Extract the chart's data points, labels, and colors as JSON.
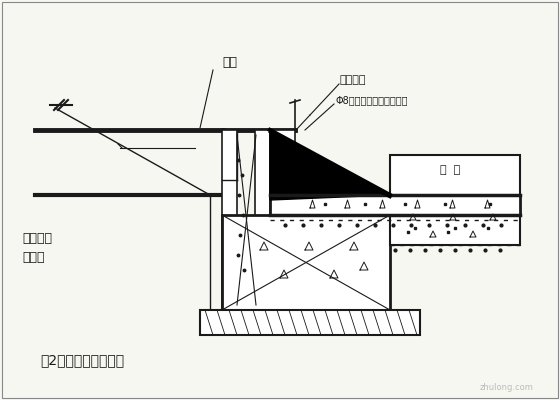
{
  "bg_color": "#f7f7f2",
  "line_color": "#1a1a1a",
  "border_color": "#888888",
  "labels": {
    "hupou": "护坡",
    "zhishui": "止水钢板",
    "phi8": "Φ8钢筋止水板与主筋点焊",
    "dipan": "底  板",
    "gangguan": "钢管或木\n枋支撑",
    "bottom_text": "（2）、内外墙模板："
  },
  "font_size": 9,
  "small_font": 8
}
